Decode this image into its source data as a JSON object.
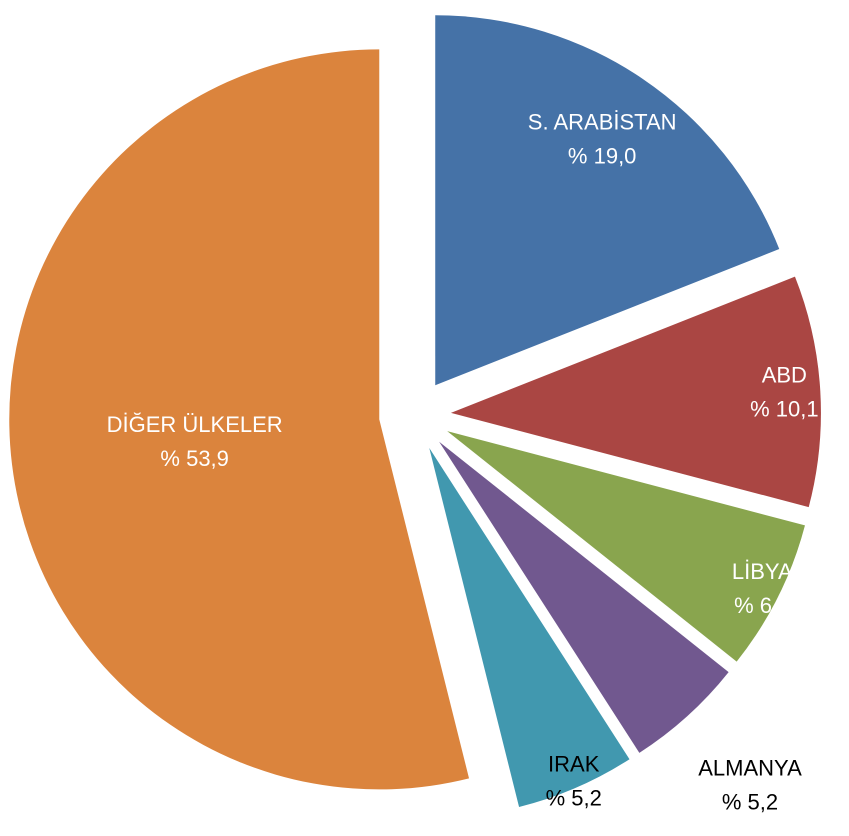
{
  "chart_data": {
    "type": "pie",
    "categories": [
      "S. ARABİSTAN",
      "ABD",
      "LİBYA",
      "ALMANYA",
      "IRAK",
      "DİĞER ÜLKELER"
    ],
    "values": [
      19.0,
      10.1,
      6.6,
      5.2,
      5.2,
      53.9
    ],
    "value_labels": [
      "% 19,0",
      "% 10,1",
      "% 6,6",
      "% 5,2",
      "% 5,2",
      "% 53,9"
    ],
    "colors": [
      "#4572a7",
      "#aa4643",
      "#89a54e",
      "#71588f",
      "#4198af",
      "#db843d"
    ]
  }
}
